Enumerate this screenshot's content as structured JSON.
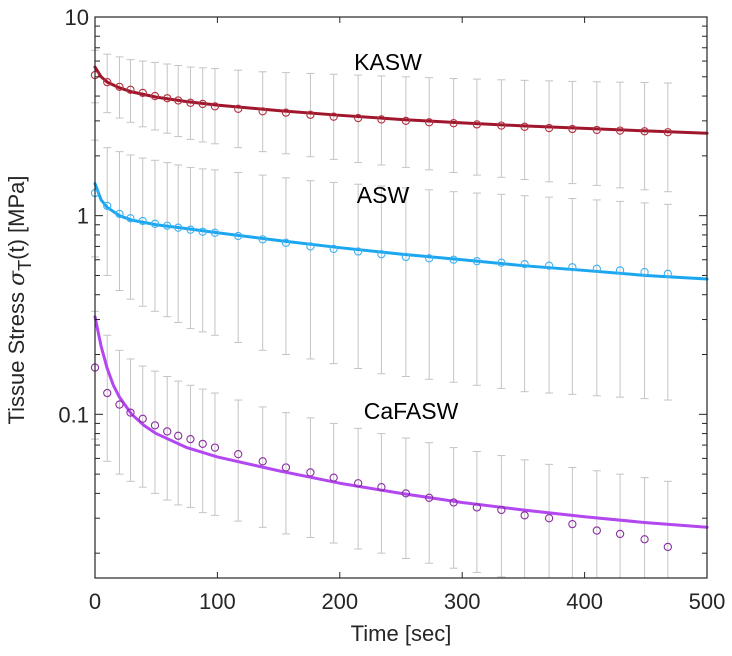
{
  "chart_data": {
    "type": "scatter",
    "title": "",
    "xlabel": "Time [sec]",
    "ylabel": {
      "main": "Tissue Stress ",
      "symbol": "σ",
      "sub": "T",
      "rest": "(t) [MPa]"
    },
    "xlim": [
      0,
      500
    ],
    "ylim": [
      0.015,
      10
    ],
    "yscale": "log",
    "grid": false,
    "x_ticks": [
      0,
      100,
      200,
      300,
      400,
      500
    ],
    "x_tick_labels": [
      "0",
      "100",
      "200",
      "300",
      "400",
      "500"
    ],
    "y_ticks": [
      0.1,
      1,
      10
    ],
    "y_tick_labels": [
      "0.1",
      "1",
      "10"
    ],
    "annotations": [
      {
        "text": "KASW",
        "series": "KASW"
      },
      {
        "text": "ASW",
        "series": "ASW"
      },
      {
        "text": "CaFASW",
        "series": "CaFASW"
      }
    ],
    "series": [
      {
        "name": "KASW",
        "color": "#a0172d",
        "marker_color": "#b2303f",
        "points": {
          "x": [
            0,
            10,
            20,
            29,
            39,
            49,
            59,
            68,
            78,
            88,
            98,
            117,
            137,
            156,
            176,
            195,
            215,
            234,
            254,
            273,
            293,
            312,
            332,
            351,
            371,
            390,
            410,
            429,
            449,
            468
          ],
          "y": [
            5.1,
            4.7,
            4.45,
            4.3,
            4.15,
            4.0,
            3.9,
            3.8,
            3.7,
            3.65,
            3.55,
            3.45,
            3.35,
            3.3,
            3.22,
            3.15,
            3.1,
            3.05,
            3.0,
            2.95,
            2.92,
            2.88,
            2.84,
            2.8,
            2.76,
            2.73,
            2.7,
            2.68,
            2.66,
            2.63
          ],
          "err_low": [
            3.7,
            3.3,
            3.1,
            2.95,
            2.8,
            2.7,
            2.6,
            2.5,
            2.42,
            2.35,
            2.3,
            2.2,
            2.1,
            2.05,
            1.98,
            1.92,
            1.85,
            1.8,
            1.75,
            1.7,
            1.65,
            1.6,
            1.56,
            1.52,
            1.48,
            1.45,
            1.42,
            1.38,
            1.35,
            1.32
          ],
          "err_high": [
            6.8,
            6.5,
            6.3,
            6.1,
            6.0,
            5.9,
            5.8,
            5.7,
            5.6,
            5.55,
            5.5,
            5.4,
            5.3,
            5.25,
            5.2,
            5.15,
            5.1,
            5.05,
            5.0,
            4.95,
            4.9,
            4.87,
            4.83,
            4.8,
            4.77,
            4.74,
            4.72,
            4.7,
            4.68,
            4.65
          ]
        },
        "fit": {
          "x": [
            0,
            5,
            10,
            20,
            30,
            50,
            75,
            100,
            150,
            200,
            250,
            300,
            350,
            400,
            450,
            500
          ],
          "y": [
            5.6,
            5.0,
            4.7,
            4.4,
            4.2,
            3.95,
            3.75,
            3.6,
            3.38,
            3.2,
            3.05,
            2.93,
            2.83,
            2.75,
            2.67,
            2.6
          ]
        }
      },
      {
        "name": "ASW",
        "color": "#1ba6f0",
        "marker_color": "#3db2f2",
        "points": {
          "x": [
            0,
            10,
            20,
            29,
            39,
            49,
            59,
            68,
            78,
            88,
            98,
            117,
            137,
            156,
            176,
            195,
            215,
            234,
            254,
            273,
            293,
            312,
            332,
            351,
            371,
            390,
            410,
            429,
            449,
            468
          ],
          "y": [
            1.3,
            1.12,
            1.02,
            0.97,
            0.94,
            0.91,
            0.89,
            0.87,
            0.85,
            0.83,
            0.82,
            0.79,
            0.76,
            0.73,
            0.7,
            0.68,
            0.66,
            0.64,
            0.62,
            0.61,
            0.6,
            0.59,
            0.58,
            0.57,
            0.56,
            0.55,
            0.54,
            0.53,
            0.52,
            0.51
          ],
          "err_low": [
            0.62,
            0.5,
            0.42,
            0.38,
            0.35,
            0.33,
            0.31,
            0.29,
            0.27,
            0.26,
            0.25,
            0.23,
            0.21,
            0.2,
            0.19,
            0.18,
            0.17,
            0.16,
            0.155,
            0.15,
            0.145,
            0.14,
            0.135,
            0.13,
            0.128,
            0.126,
            0.124,
            0.122,
            0.12,
            0.118
          ],
          "err_high": [
            2.4,
            2.2,
            2.1,
            2.02,
            1.95,
            1.9,
            1.85,
            1.8,
            1.75,
            1.72,
            1.7,
            1.65,
            1.6,
            1.55,
            1.5,
            1.47,
            1.44,
            1.41,
            1.38,
            1.35,
            1.32,
            1.3,
            1.28,
            1.26,
            1.24,
            1.22,
            1.2,
            1.18,
            1.16,
            1.14
          ]
        },
        "fit": {
          "x": [
            0,
            5,
            10,
            20,
            30,
            50,
            75,
            100,
            150,
            200,
            250,
            300,
            350,
            400,
            450,
            500
          ],
          "y": [
            1.45,
            1.2,
            1.1,
            1.0,
            0.95,
            0.9,
            0.86,
            0.82,
            0.75,
            0.69,
            0.64,
            0.6,
            0.56,
            0.53,
            0.5,
            0.48
          ]
        }
      },
      {
        "name": "CaFASW",
        "color": "#b347f0",
        "marker_color": "#8a2e9f",
        "points": {
          "x": [
            0,
            10,
            20,
            29,
            39,
            49,
            59,
            68,
            78,
            88,
            98,
            117,
            137,
            156,
            176,
            195,
            215,
            234,
            254,
            273,
            293,
            312,
            332,
            351,
            371,
            390,
            410,
            429,
            449,
            468
          ],
          "y": [
            0.172,
            0.128,
            0.112,
            0.102,
            0.095,
            0.088,
            0.082,
            0.078,
            0.075,
            0.071,
            0.068,
            0.063,
            0.058,
            0.054,
            0.051,
            0.048,
            0.045,
            0.043,
            0.04,
            0.038,
            0.036,
            0.034,
            0.033,
            0.031,
            0.03,
            0.028,
            0.026,
            0.025,
            0.0235,
            0.0215
          ],
          "err_low": [
            0.075,
            0.058,
            0.05,
            0.046,
            0.043,
            0.04,
            0.037,
            0.035,
            0.034,
            0.032,
            0.031,
            0.029,
            0.027,
            0.025,
            0.024,
            0.0225,
            0.021,
            0.02,
            0.0188,
            0.0178,
            0.0168,
            0.016,
            0.0152,
            0.0146,
            0.014,
            0.0135,
            0.013,
            0.0125,
            0.012,
            0.0115
          ],
          "err_high": [
            0.33,
            0.25,
            0.21,
            0.19,
            0.175,
            0.165,
            0.155,
            0.147,
            0.14,
            0.134,
            0.128,
            0.118,
            0.109,
            0.102,
            0.096,
            0.09,
            0.085,
            0.08,
            0.076,
            0.072,
            0.068,
            0.065,
            0.062,
            0.059,
            0.056,
            0.054,
            0.052,
            0.05,
            0.048,
            0.046
          ]
        },
        "fit": {
          "x": [
            0,
            2,
            5,
            10,
            15,
            20,
            30,
            40,
            50,
            75,
            100,
            150,
            200,
            250,
            300,
            350,
            400,
            450,
            500
          ],
          "y": [
            0.31,
            0.27,
            0.22,
            0.17,
            0.14,
            0.122,
            0.1,
            0.088,
            0.08,
            0.068,
            0.061,
            0.052,
            0.045,
            0.04,
            0.036,
            0.033,
            0.0305,
            0.0285,
            0.027
          ]
        }
      }
    ]
  }
}
